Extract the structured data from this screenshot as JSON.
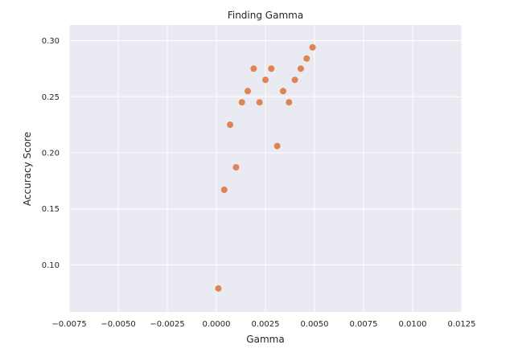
{
  "chart_data": {
    "type": "scatter",
    "title": "Finding Gamma",
    "xlabel": "Gamma",
    "ylabel": "Accuracy Score",
    "xlim": [
      -0.0075,
      0.0125
    ],
    "ylim": [
      0.058,
      0.314
    ],
    "xticks": [
      -0.0075,
      -0.005,
      -0.0025,
      0.0,
      0.0025,
      0.005,
      0.0075,
      0.01,
      0.0125
    ],
    "xtick_labels": [
      "−0.0075",
      "−0.0050",
      "−0.0025",
      "0.0000",
      "0.0025",
      "0.0050",
      "0.0075",
      "0.0100",
      "0.0125"
    ],
    "yticks": [
      0.1,
      0.15,
      0.2,
      0.25,
      0.3
    ],
    "ytick_labels": [
      "0.10",
      "0.15",
      "0.20",
      "0.25",
      "0.30"
    ],
    "grid": true,
    "background": "#eaeaf2",
    "point_color": "#dd8452",
    "points": [
      {
        "x": 0.0001,
        "y": 0.079
      },
      {
        "x": 0.0004,
        "y": 0.167
      },
      {
        "x": 0.0007,
        "y": 0.225
      },
      {
        "x": 0.001,
        "y": 0.187
      },
      {
        "x": 0.0013,
        "y": 0.245
      },
      {
        "x": 0.0016,
        "y": 0.255
      },
      {
        "x": 0.0019,
        "y": 0.275
      },
      {
        "x": 0.0022,
        "y": 0.245
      },
      {
        "x": 0.0025,
        "y": 0.265
      },
      {
        "x": 0.0028,
        "y": 0.275
      },
      {
        "x": 0.0031,
        "y": 0.206
      },
      {
        "x": 0.0034,
        "y": 0.255
      },
      {
        "x": 0.0037,
        "y": 0.245
      },
      {
        "x": 0.004,
        "y": 0.265
      },
      {
        "x": 0.0043,
        "y": 0.275
      },
      {
        "x": 0.0046,
        "y": 0.284
      },
      {
        "x": 0.0049,
        "y": 0.294
      }
    ]
  }
}
